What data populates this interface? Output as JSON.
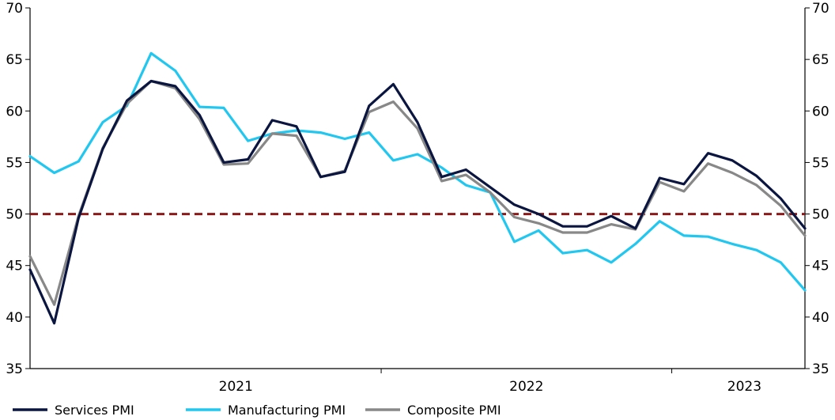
{
  "chart_data": {
    "type": "line",
    "title": "",
    "xlabel": "",
    "ylabel": "",
    "ylim": [
      35,
      70
    ],
    "y_ticks": [
      35,
      40,
      45,
      50,
      55,
      60,
      65,
      70
    ],
    "y_axis_both_sides": true,
    "x_period_labels": [
      "2021",
      "2022",
      "2023"
    ],
    "x_start": "2020-10",
    "x_end": "2023-06",
    "reference_line": {
      "value": 50,
      "style": "dashed",
      "color": "#8B1A1A"
    },
    "grid": false,
    "legend_position": "bottom",
    "series": [
      {
        "name": "Services PMI",
        "color": "#0B1640",
        "values": [
          44.6,
          39.4,
          49.6,
          56.3,
          61.0,
          62.9,
          62.4,
          59.6,
          55.0,
          55.3,
          59.1,
          58.5,
          53.6,
          54.1,
          60.5,
          62.6,
          58.9,
          53.6,
          54.3,
          52.6,
          50.9,
          50.0,
          48.8,
          48.8,
          49.8,
          48.6,
          53.5,
          52.9,
          55.9,
          55.2,
          53.7,
          51.5,
          48.6
        ]
      },
      {
        "name": "Manufacturing PMI",
        "color": "#22C7F0",
        "values": [
          55.6,
          54.0,
          55.1,
          58.9,
          60.5,
          65.6,
          63.9,
          60.4,
          60.3,
          57.1,
          57.8,
          58.1,
          57.9,
          57.3,
          57.9,
          55.2,
          55.8,
          54.5,
          52.8,
          52.1,
          47.3,
          48.4,
          46.2,
          46.5,
          45.3,
          47.1,
          49.3,
          47.9,
          47.8,
          47.1,
          46.5,
          45.3,
          42.6
        ]
      },
      {
        "name": "Composite PMI",
        "color": "#888888",
        "values": [
          45.9,
          41.2,
          49.8,
          56.4,
          60.7,
          62.9,
          62.2,
          59.2,
          54.8,
          54.9,
          57.8,
          57.6,
          53.6,
          54.2,
          59.9,
          60.9,
          58.3,
          53.2,
          53.8,
          52.1,
          49.7,
          49.1,
          48.2,
          48.2,
          49.0,
          48.5,
          53.1,
          52.2,
          54.9,
          54.0,
          52.8,
          50.8,
          47.9
        ]
      }
    ]
  }
}
